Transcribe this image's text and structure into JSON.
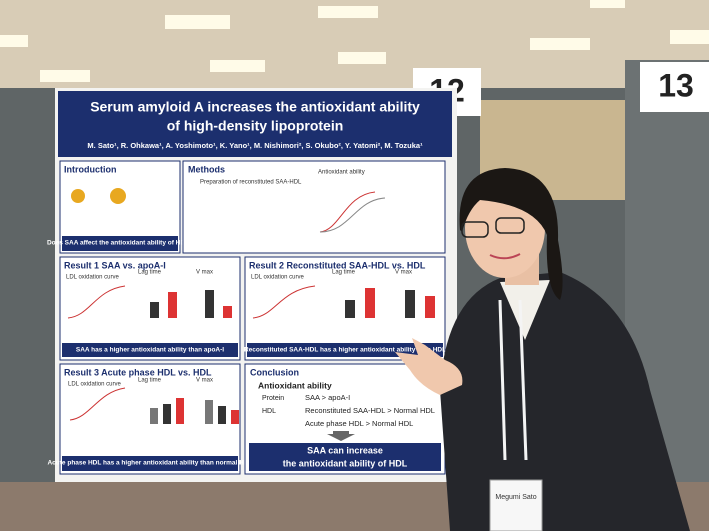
{
  "board_numbers": [
    "12",
    "13"
  ],
  "poster": {
    "title": [
      "Serum amyloid A increases the antioxidant ability",
      "of high-density lipoprotein"
    ],
    "authors": "M. Sato¹, R. Ohkawa¹, A. Yoshimoto¹, K. Yano¹, M. Nishimori², S. Okubo², Y. Yatomi², M. Tozuka¹",
    "introduction": {
      "heading": "Introduction",
      "banner": "Does SAA affect the antioxidant ability of HDL?"
    },
    "methods": {
      "heading": "Methods",
      "items": [
        "Preparation of reconstituted SAA-HDL",
        "Antioxidant ability"
      ]
    },
    "result1": {
      "heading": "Result 1  SAA vs. apoA-I",
      "labels": [
        "LDL oxidation curve",
        "Lag time",
        "V max"
      ],
      "banner": "SAA has a higher antioxidant ability than apoA-I"
    },
    "result2": {
      "heading": "Result 2  Reconstituted SAA-HDL vs. HDL",
      "labels": [
        "LDL oxidation curve",
        "Lag time",
        "V max"
      ],
      "banner": "Reconstituted SAA-HDL has a higher antioxidant ability than HDL"
    },
    "result3": {
      "heading": "Result 3  Acute phase HDL vs. HDL",
      "labels": [
        "LDL oxidation curve",
        "Lag time",
        "V max"
      ],
      "banner": "Acute phase HDL has a higher antioxidant ability than normal HDL"
    },
    "conclusion": {
      "heading": "Conclusion",
      "subheading": "Antioxidant ability",
      "rows": [
        [
          "Protein",
          "SAA > apoA-I"
        ],
        [
          "HDL",
          "Reconstituted SAA-HDL > Normal HDL"
        ],
        [
          "",
          "Acute phase HDL > Normal HDL"
        ]
      ],
      "final": [
        "SAA can increase",
        "the antioxidant ability of HDL"
      ]
    }
  },
  "badge": "Megumi Sato"
}
